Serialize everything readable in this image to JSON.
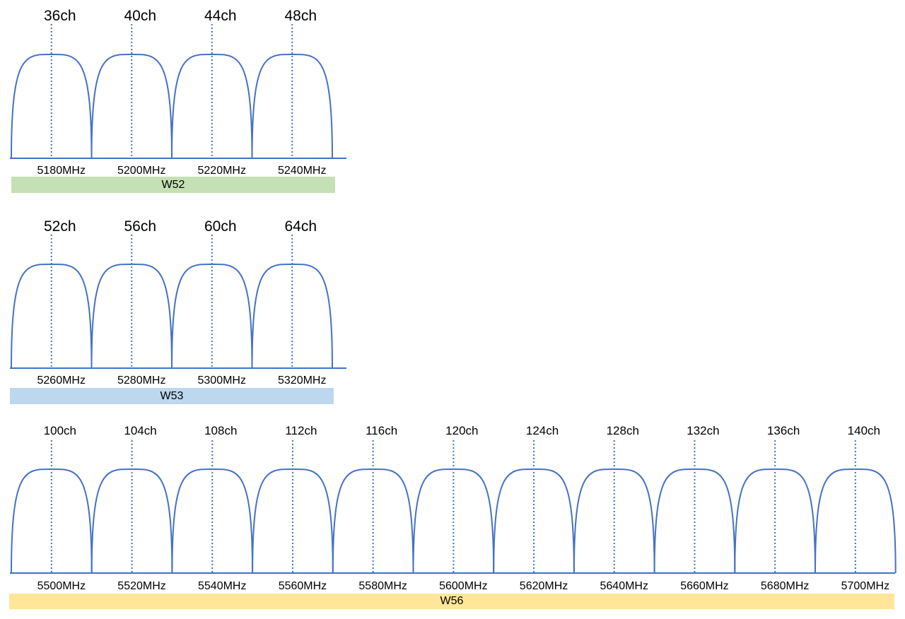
{
  "colors": {
    "curve": "#4472c4",
    "marker": "#4472c4",
    "w52": "#c5e0b4",
    "w53": "#bdd7ee",
    "w56": "#ffe699"
  },
  "bands": [
    {
      "name": "W52",
      "channels": [
        {
          "label": "36ch",
          "freq": "5180MHz"
        },
        {
          "label": "40ch",
          "freq": "5200MHz"
        },
        {
          "label": "44ch",
          "freq": "5220MHz"
        },
        {
          "label": "48ch",
          "freq": "5240MHz"
        }
      ]
    },
    {
      "name": "W53",
      "channels": [
        {
          "label": "52ch",
          "freq": "5260MHz"
        },
        {
          "label": "56ch",
          "freq": "5280MHz"
        },
        {
          "label": "60ch",
          "freq": "5300MHz"
        },
        {
          "label": "64ch",
          "freq": "5320MHz"
        }
      ]
    },
    {
      "name": "W56",
      "channels": [
        {
          "label": "100ch",
          "freq": "5500MHz"
        },
        {
          "label": "104ch",
          "freq": "5520MHz"
        },
        {
          "label": "108ch",
          "freq": "5540MHz"
        },
        {
          "label": "112ch",
          "freq": "5560MHz"
        },
        {
          "label": "116ch",
          "freq": "5580MHz"
        },
        {
          "label": "120ch",
          "freq": "5600MHz"
        },
        {
          "label": "124ch",
          "freq": "5620MHz"
        },
        {
          "label": "128ch",
          "freq": "5640MHz"
        },
        {
          "label": "132ch",
          "freq": "5660MHz"
        },
        {
          "label": "136ch",
          "freq": "5680MHz"
        },
        {
          "label": "140ch",
          "freq": "5700MHz"
        }
      ]
    }
  ]
}
